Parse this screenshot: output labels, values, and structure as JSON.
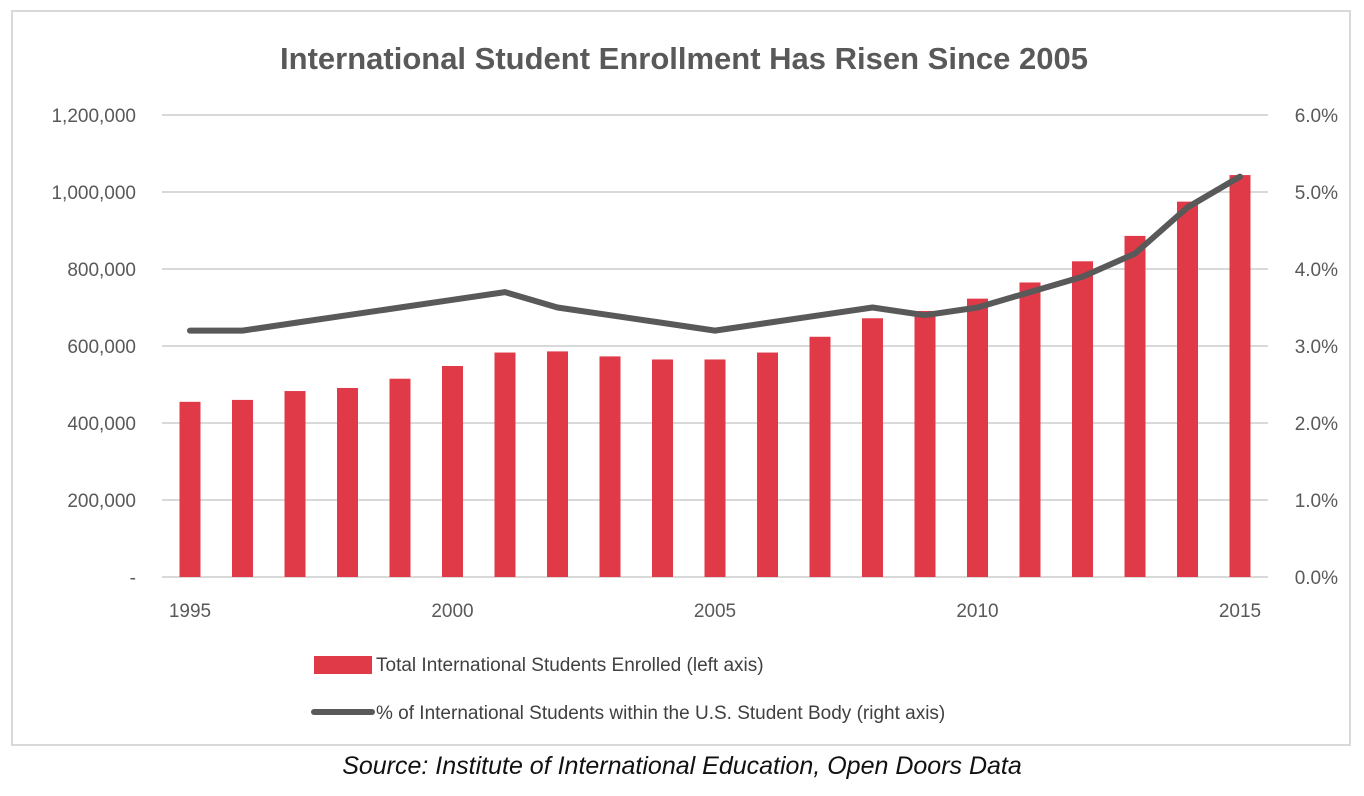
{
  "chart_data": {
    "type": "bar",
    "title": "International Student Enrollment Has Risen Since 2005",
    "x": [
      1995,
      1996,
      1997,
      1998,
      1999,
      2000,
      2001,
      2002,
      2003,
      2004,
      2005,
      2006,
      2007,
      2008,
      2009,
      2010,
      2011,
      2012,
      2013,
      2014,
      2015
    ],
    "x_tick_labels": [
      "1995",
      "2000",
      "2005",
      "2010",
      "2015"
    ],
    "y_left": {
      "ylim": [
        0,
        1200000
      ],
      "tick_labels": [
        "-",
        "200,000",
        "400,000",
        "600,000",
        "800,000",
        "1,000,000",
        "1,200,000"
      ]
    },
    "y_right": {
      "ylim": [
        0,
        6.0
      ],
      "tick_labels": [
        "0.0%",
        "1.0%",
        "2.0%",
        "3.0%",
        "4.0%",
        "5.0%",
        "6.0%"
      ]
    },
    "grid": true,
    "legend_position": "bottom",
    "series": [
      {
        "name": "Total International Students Enrolled (left axis)",
        "type": "bar",
        "axis": "left",
        "color": "#e03a48",
        "values": [
          455000,
          460000,
          483000,
          491000,
          515000,
          548000,
          583000,
          586000,
          573000,
          565000,
          565000,
          583000,
          624000,
          672000,
          691000,
          723000,
          765000,
          820000,
          886000,
          975000,
          1044000
        ]
      },
      {
        "name": "% of International Students within the U.S. Student Body (right axis)",
        "type": "line",
        "axis": "right",
        "color": "#595959",
        "values": [
          3.2,
          3.2,
          3.3,
          3.4,
          3.5,
          3.6,
          3.7,
          3.5,
          3.4,
          3.3,
          3.2,
          3.3,
          3.4,
          3.5,
          3.4,
          3.5,
          3.7,
          3.9,
          4.2,
          4.8,
          5.2
        ]
      }
    ]
  },
  "source": "Source: Institute of International Education, Open Doors Data"
}
